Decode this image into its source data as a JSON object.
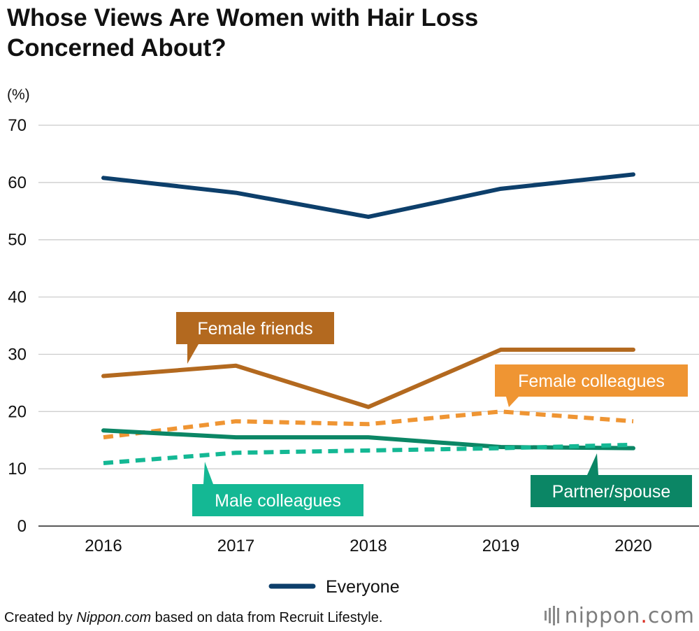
{
  "title": {
    "line1": "Whose Views Are Women with Hair Loss",
    "line2": "Concerned About?"
  },
  "footer": {
    "prefix": "Created by ",
    "source": "Nippon.com",
    "suffix": " based on data from Recruit Lifestyle."
  },
  "logo": {
    "name": "nippon",
    "dot": ".",
    "tld": "com"
  },
  "colors": {
    "everyone": "#0d3f6b",
    "female_friends": "#b3691f",
    "female_colleagues": "#ef9533",
    "male_colleagues": "#14b894",
    "partner_spouse": "#0b8665"
  },
  "chart_data": {
    "type": "line",
    "ylabel": "(%)",
    "ylim": [
      0,
      70
    ],
    "yticks": [
      0,
      10,
      20,
      30,
      40,
      50,
      60,
      70
    ],
    "grid": true,
    "legend_placement": "bottom-center",
    "x": [
      "2016",
      "2017",
      "2018",
      "2019",
      "2020"
    ],
    "series": [
      {
        "name": "Everyone",
        "key": "everyone",
        "style": "solid",
        "values": [
          60.8,
          58.2,
          54.0,
          58.9,
          61.4
        ],
        "legend": true
      },
      {
        "name": "Female friends",
        "key": "female_friends",
        "style": "solid",
        "values": [
          26.2,
          28.0,
          20.8,
          30.8,
          30.8
        ]
      },
      {
        "name": "Female colleagues",
        "key": "female_colleagues",
        "style": "dashed",
        "values": [
          15.5,
          18.3,
          17.8,
          20.0,
          18.3
        ]
      },
      {
        "name": "Partner/spouse",
        "key": "partner_spouse",
        "style": "solid",
        "values": [
          16.7,
          15.5,
          15.5,
          13.8,
          13.6
        ]
      },
      {
        "name": "Male colleagues",
        "key": "male_colleagues",
        "style": "dashed",
        "values": [
          11.0,
          12.8,
          13.2,
          13.6,
          14.2
        ]
      }
    ]
  }
}
